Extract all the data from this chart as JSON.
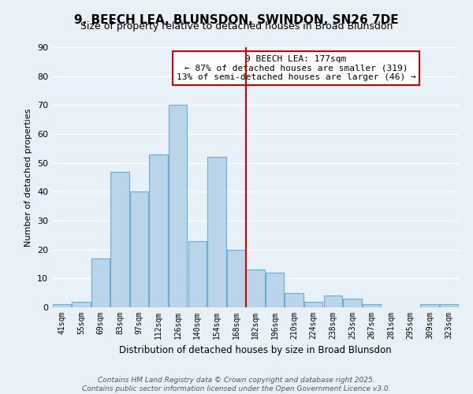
{
  "title": "9, BEECH LEA, BLUNSDON, SWINDON, SN26 7DE",
  "subtitle": "Size of property relative to detached houses in Broad Blunsdon",
  "xlabel": "Distribution of detached houses by size in Broad Blunsdon",
  "ylabel": "Number of detached properties",
  "bar_labels": [
    "41sqm",
    "55sqm",
    "69sqm",
    "83sqm",
    "97sqm",
    "112sqm",
    "126sqm",
    "140sqm",
    "154sqm",
    "168sqm",
    "182sqm",
    "196sqm",
    "210sqm",
    "224sqm",
    "238sqm",
    "253sqm",
    "267sqm",
    "281sqm",
    "295sqm",
    "309sqm",
    "323sqm"
  ],
  "bar_values": [
    1,
    2,
    17,
    47,
    40,
    53,
    70,
    23,
    52,
    20,
    13,
    12,
    5,
    2,
    4,
    3,
    1,
    0,
    0,
    1,
    1
  ],
  "bar_color": "#bad4ea",
  "bar_edge_color": "#6aaed6",
  "vline_color": "#cc0000",
  "vline_index": 10,
  "annotation_line1": "9 BEECH LEA: 177sqm",
  "annotation_line2": "← 87% of detached houses are smaller (319)",
  "annotation_line3": "13% of semi-detached houses are larger (46) →",
  "annotation_box_color": "#ffffff",
  "annotation_box_edge_color": "#cc0000",
  "ylim": [
    0,
    90
  ],
  "yticks": [
    0,
    10,
    20,
    30,
    40,
    50,
    60,
    70,
    80,
    90
  ],
  "bg_color": "#e8f0f8",
  "grid_color": "#ffffff",
  "footer_line1": "Contains HM Land Registry data © Crown copyright and database right 2025.",
  "footer_line2": "Contains public sector information licensed under the Open Government Licence v3.0.",
  "title_fontsize": 11,
  "subtitle_fontsize": 9,
  "annotation_fontsize": 8,
  "footer_fontsize": 6.5,
  "ylabel_fontsize": 8,
  "xlabel_fontsize": 8.5,
  "ytick_fontsize": 8
}
